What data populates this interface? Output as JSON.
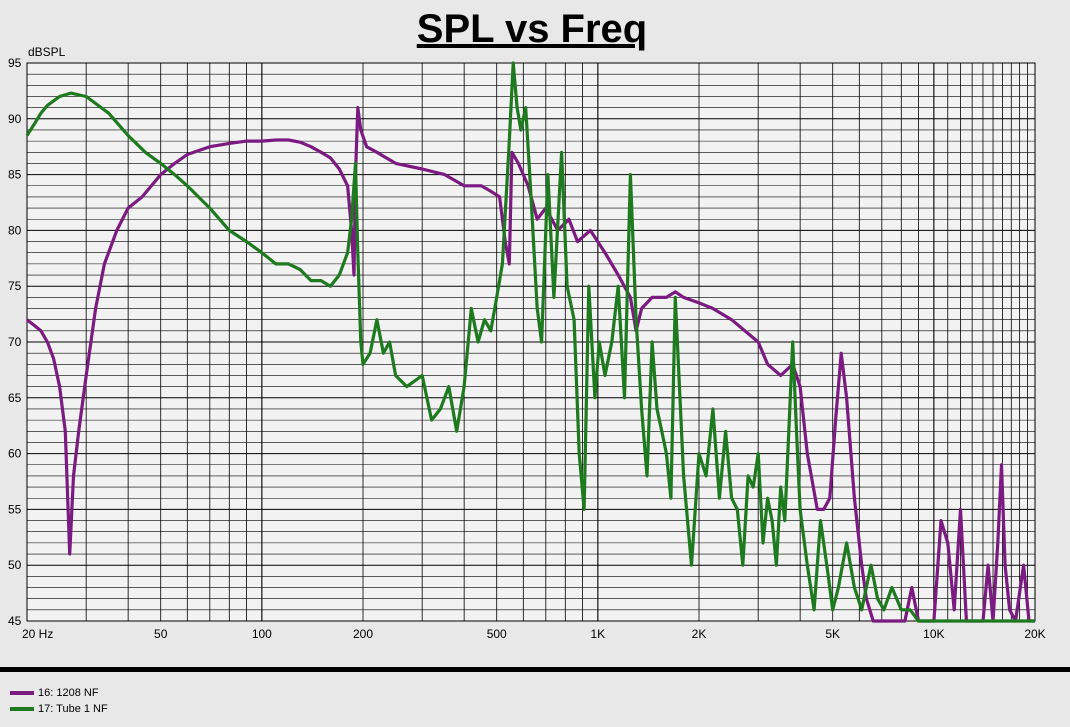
{
  "chart_data": {
    "type": "line",
    "title": "SPL vs Freq",
    "ylabel": "dBSPL",
    "xlabel": "",
    "xscale": "log",
    "xlim": [
      20,
      20000
    ],
    "ylim": [
      45,
      95
    ],
    "grid": true,
    "legend_position": "bottom-left",
    "y_ticks": [
      {
        "value": 95,
        "label": "95"
      },
      {
        "value": 90,
        "label": "90"
      },
      {
        "value": 85,
        "label": "85"
      },
      {
        "value": 80,
        "label": "80"
      },
      {
        "value": 75,
        "label": "75"
      },
      {
        "value": 70,
        "label": "70"
      },
      {
        "value": 65,
        "label": "65"
      },
      {
        "value": 60,
        "label": "60"
      },
      {
        "value": 55,
        "label": "55"
      },
      {
        "value": 50,
        "label": "50"
      },
      {
        "value": 45,
        "label": "45"
      }
    ],
    "x_ticks": [
      {
        "value": 20,
        "label": "20  Hz"
      },
      {
        "value": 50,
        "label": "50"
      },
      {
        "value": 100,
        "label": "100"
      },
      {
        "value": 200,
        "label": "200"
      },
      {
        "value": 500,
        "label": "500"
      },
      {
        "value": 1000,
        "label": "1K"
      },
      {
        "value": 2000,
        "label": "2K"
      },
      {
        "value": 5000,
        "label": "5K"
      },
      {
        "value": 10000,
        "label": "10K"
      },
      {
        "value": 20000,
        "label": "20K"
      }
    ],
    "series": [
      {
        "name": "16: 1208 NF",
        "color": "#7b1a80",
        "points": [
          [
            20,
            72
          ],
          [
            21,
            71.5
          ],
          [
            22,
            71
          ],
          [
            23,
            70
          ],
          [
            24,
            68.5
          ],
          [
            25,
            66
          ],
          [
            26,
            62
          ],
          [
            26.8,
            51
          ],
          [
            27.5,
            58
          ],
          [
            28.5,
            62
          ],
          [
            30,
            67
          ],
          [
            32,
            73
          ],
          [
            34,
            77
          ],
          [
            37,
            80
          ],
          [
            40,
            82
          ],
          [
            44,
            83
          ],
          [
            50,
            85
          ],
          [
            55,
            86
          ],
          [
            60,
            86.8
          ],
          [
            70,
            87.5
          ],
          [
            80,
            87.8
          ],
          [
            90,
            88
          ],
          [
            100,
            88
          ],
          [
            110,
            88.1
          ],
          [
            120,
            88.1
          ],
          [
            130,
            87.9
          ],
          [
            140,
            87.5
          ],
          [
            150,
            87
          ],
          [
            160,
            86.5
          ],
          [
            170,
            85.5
          ],
          [
            180,
            84
          ],
          [
            185,
            80
          ],
          [
            188,
            76
          ],
          [
            190,
            85
          ],
          [
            193,
            91
          ],
          [
            197,
            89
          ],
          [
            205,
            87.5
          ],
          [
            220,
            87
          ],
          [
            250,
            86
          ],
          [
            300,
            85.5
          ],
          [
            350,
            85
          ],
          [
            400,
            84
          ],
          [
            450,
            84
          ],
          [
            480,
            83.5
          ],
          [
            510,
            83
          ],
          [
            530,
            79
          ],
          [
            545,
            77
          ],
          [
            555,
            87
          ],
          [
            580,
            86
          ],
          [
            620,
            84
          ],
          [
            660,
            81
          ],
          [
            700,
            82
          ],
          [
            760,
            80
          ],
          [
            820,
            81
          ],
          [
            870,
            79
          ],
          [
            950,
            80
          ],
          [
            1050,
            78
          ],
          [
            1150,
            76
          ],
          [
            1250,
            74
          ],
          [
            1300,
            71
          ],
          [
            1350,
            73
          ],
          [
            1450,
            74
          ],
          [
            1600,
            74
          ],
          [
            1700,
            74.5
          ],
          [
            1800,
            74
          ],
          [
            2000,
            73.5
          ],
          [
            2200,
            73
          ],
          [
            2500,
            72
          ],
          [
            3000,
            70
          ],
          [
            3200,
            68
          ],
          [
            3500,
            67
          ],
          [
            3800,
            68
          ],
          [
            4000,
            66
          ],
          [
            4200,
            60
          ],
          [
            4500,
            55
          ],
          [
            4700,
            55
          ],
          [
            4900,
            56
          ],
          [
            5100,
            63
          ],
          [
            5300,
            69
          ],
          [
            5500,
            65
          ],
          [
            5800,
            56
          ],
          [
            6100,
            50
          ],
          [
            6300,
            47
          ],
          [
            6600,
            45
          ],
          [
            7000,
            45
          ],
          [
            7400,
            45
          ],
          [
            7800,
            45
          ],
          [
            8200,
            45
          ],
          [
            8600,
            48
          ],
          [
            9000,
            45
          ],
          [
            9400,
            45
          ],
          [
            10000,
            45
          ],
          [
            10500,
            54
          ],
          [
            11000,
            52
          ],
          [
            11500,
            46
          ],
          [
            12000,
            55
          ],
          [
            12500,
            45
          ],
          [
            13000,
            45
          ],
          [
            13500,
            45
          ],
          [
            14000,
            45
          ],
          [
            14500,
            50
          ],
          [
            15000,
            45
          ],
          [
            15500,
            52
          ],
          [
            15900,
            59
          ],
          [
            16300,
            50
          ],
          [
            16800,
            46
          ],
          [
            17500,
            45
          ],
          [
            18500,
            50
          ],
          [
            19200,
            45
          ],
          [
            20000,
            45
          ]
        ]
      },
      {
        "name": "17: Tube 1 NF",
        "color": "#1e7a1e",
        "points": [
          [
            20,
            88.5
          ],
          [
            21,
            89.5
          ],
          [
            22,
            90.5
          ],
          [
            23,
            91.2
          ],
          [
            25,
            92
          ],
          [
            27,
            92.3
          ],
          [
            30,
            92
          ],
          [
            35,
            90.5
          ],
          [
            40,
            88.5
          ],
          [
            45,
            87
          ],
          [
            50,
            86
          ],
          [
            55,
            85
          ],
          [
            60,
            84
          ],
          [
            70,
            82
          ],
          [
            80,
            80
          ],
          [
            90,
            79
          ],
          [
            100,
            78
          ],
          [
            110,
            77
          ],
          [
            120,
            77
          ],
          [
            130,
            76.5
          ],
          [
            140,
            75.5
          ],
          [
            150,
            75.5
          ],
          [
            160,
            75
          ],
          [
            170,
            76
          ],
          [
            180,
            78
          ],
          [
            185,
            81
          ],
          [
            190,
            86
          ],
          [
            193,
            78
          ],
          [
            197,
            70
          ],
          [
            200,
            68
          ],
          [
            210,
            69
          ],
          [
            220,
            72
          ],
          [
            230,
            69
          ],
          [
            240,
            70
          ],
          [
            250,
            67
          ],
          [
            270,
            66
          ],
          [
            300,
            67
          ],
          [
            320,
            63
          ],
          [
            340,
            64
          ],
          [
            360,
            66
          ],
          [
            380,
            62
          ],
          [
            400,
            66
          ],
          [
            420,
            73
          ],
          [
            440,
            70
          ],
          [
            460,
            72
          ],
          [
            480,
            71
          ],
          [
            500,
            74
          ],
          [
            520,
            77
          ],
          [
            545,
            88
          ],
          [
            560,
            95
          ],
          [
            575,
            91
          ],
          [
            590,
            89
          ],
          [
            610,
            91
          ],
          [
            630,
            84
          ],
          [
            660,
            73
          ],
          [
            680,
            70
          ],
          [
            710,
            85
          ],
          [
            740,
            74
          ],
          [
            780,
            87
          ],
          [
            810,
            75
          ],
          [
            850,
            72
          ],
          [
            880,
            60
          ],
          [
            910,
            55
          ],
          [
            940,
            75
          ],
          [
            980,
            65
          ],
          [
            1010,
            70
          ],
          [
            1050,
            67
          ],
          [
            1100,
            70
          ],
          [
            1150,
            75
          ],
          [
            1200,
            65
          ],
          [
            1250,
            85
          ],
          [
            1300,
            72
          ],
          [
            1350,
            64
          ],
          [
            1400,
            58
          ],
          [
            1450,
            70
          ],
          [
            1500,
            64
          ],
          [
            1550,
            62
          ],
          [
            1600,
            60
          ],
          [
            1650,
            56
          ],
          [
            1700,
            74
          ],
          [
            1800,
            58
          ],
          [
            1900,
            50
          ],
          [
            2000,
            60
          ],
          [
            2100,
            58
          ],
          [
            2200,
            64
          ],
          [
            2300,
            56
          ],
          [
            2400,
            62
          ],
          [
            2500,
            56
          ],
          [
            2600,
            55
          ],
          [
            2700,
            50
          ],
          [
            2800,
            58
          ],
          [
            2900,
            57
          ],
          [
            3000,
            60
          ],
          [
            3100,
            52
          ],
          [
            3200,
            56
          ],
          [
            3300,
            54
          ],
          [
            3400,
            50
          ],
          [
            3500,
            57
          ],
          [
            3600,
            54
          ],
          [
            3700,
            62
          ],
          [
            3800,
            70
          ],
          [
            3900,
            62
          ],
          [
            4000,
            55
          ],
          [
            4200,
            50
          ],
          [
            4400,
            46
          ],
          [
            4600,
            54
          ],
          [
            4800,
            50
          ],
          [
            5000,
            46
          ],
          [
            5200,
            48
          ],
          [
            5500,
            52
          ],
          [
            5800,
            48
          ],
          [
            6100,
            46
          ],
          [
            6500,
            50
          ],
          [
            6800,
            47
          ],
          [
            7100,
            46
          ],
          [
            7500,
            48
          ],
          [
            8000,
            46
          ],
          [
            8500,
            46
          ],
          [
            9000,
            45
          ],
          [
            10000,
            45
          ],
          [
            11000,
            45
          ],
          [
            12000,
            45
          ],
          [
            13000,
            45
          ],
          [
            14000,
            45
          ],
          [
            15000,
            45
          ],
          [
            16000,
            45
          ],
          [
            18000,
            45
          ],
          [
            20000,
            45
          ]
        ]
      }
    ]
  }
}
